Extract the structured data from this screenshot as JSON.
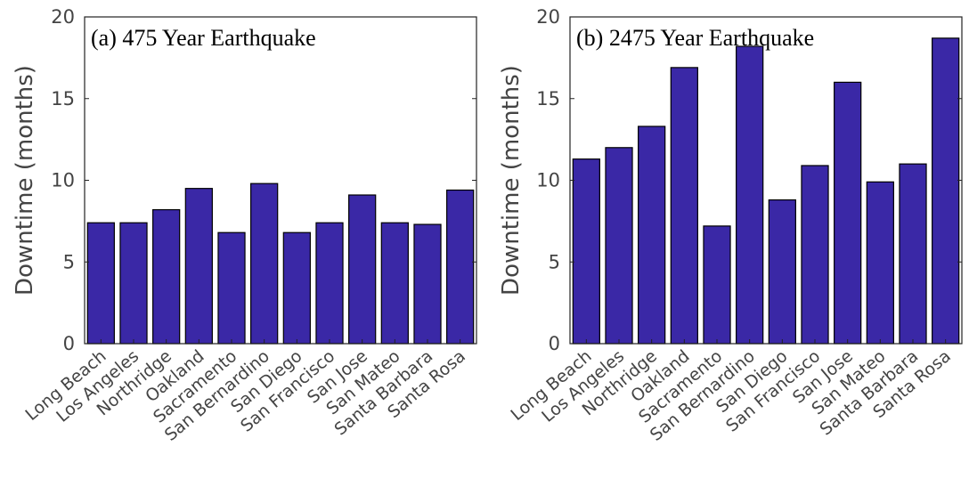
{
  "chart_data": [
    {
      "type": "bar",
      "title": "(a) 475 Year Earthquake",
      "ylabel": "Downtime (months)",
      "xlabel": "",
      "ylim": [
        0,
        20
      ],
      "yticks": [
        "0",
        "5",
        "10",
        "15",
        "20"
      ],
      "categories": [
        "Long Beach",
        "Los Angeles",
        "Northridge",
        "Oakland",
        "Sacramento",
        "San Bernardino",
        "San Diego",
        "San Francisco",
        "San Jose",
        "San Mateo",
        "Santa Barbara",
        "Santa Rosa"
      ],
      "values": [
        7.4,
        7.4,
        8.2,
        9.5,
        6.8,
        9.8,
        6.8,
        7.4,
        9.1,
        7.4,
        7.3,
        9.4
      ],
      "bar_color": "#3a28a6",
      "grid": false
    },
    {
      "type": "bar",
      "title": "(b) 2475 Year Earthquake",
      "ylabel": "Downtime (months)",
      "xlabel": "",
      "ylim": [
        0,
        20
      ],
      "yticks": [
        "0",
        "5",
        "10",
        "15",
        "20"
      ],
      "categories": [
        "Long Beach",
        "Los Angeles",
        "Northridge",
        "Oakland",
        "Sacramento",
        "San Bernardino",
        "San Diego",
        "San Francisco",
        "San Jose",
        "San Mateo",
        "Santa Barbara",
        "Santa Rosa"
      ],
      "values": [
        11.3,
        12.0,
        13.3,
        16.9,
        7.2,
        18.2,
        8.8,
        10.9,
        16.0,
        9.9,
        11.0,
        18.7
      ],
      "bar_color": "#3a28a6",
      "grid": false
    }
  ]
}
